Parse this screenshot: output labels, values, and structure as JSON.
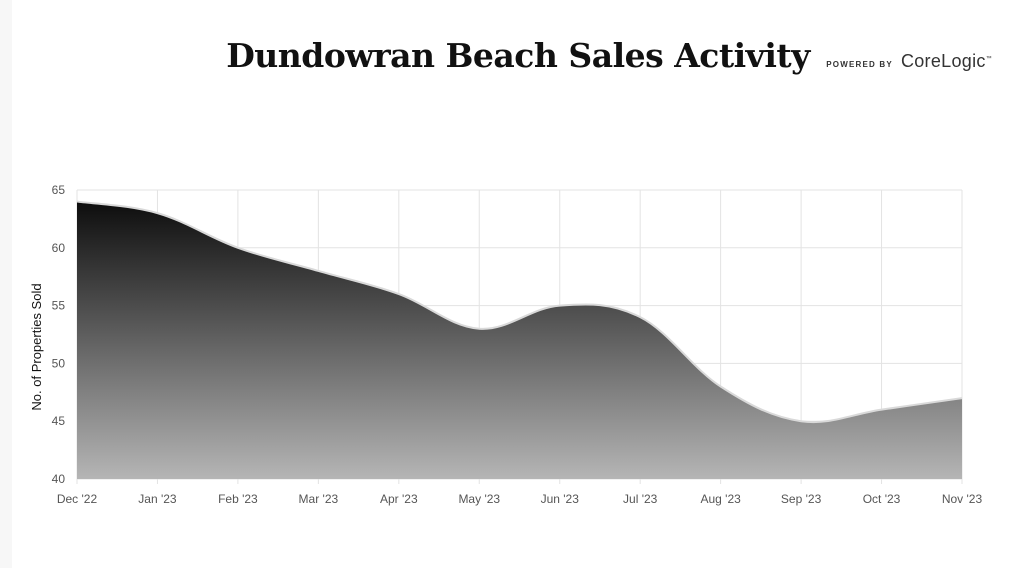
{
  "header": {
    "title": "Dundowran Beach Sales Activity",
    "brand_prefix": "POWERED BY",
    "brand_name": "CoreLogic",
    "brand_tm": "™"
  },
  "chart_data": {
    "type": "area",
    "title": "Dundowran Beach Sales Activity",
    "xlabel": "",
    "ylabel": "No. of Properties Sold",
    "categories": [
      "Dec '22",
      "Jan '23",
      "Feb '23",
      "Mar '23",
      "Apr '23",
      "May '23",
      "Jun '23",
      "Jul '23",
      "Aug '23",
      "Sep '23",
      "Oct '23",
      "Nov '23"
    ],
    "series": [
      {
        "values": [
          64,
          63,
          60,
          58,
          56,
          53,
          55,
          54,
          48,
          45,
          46,
          47
        ]
      }
    ],
    "ylim": [
      40,
      65
    ],
    "yticks": [
      40,
      45,
      50,
      55,
      60,
      65
    ],
    "grid": true,
    "legend": "none",
    "colors": {
      "fill_top": "#0d0d0d",
      "fill_bottom": "#b5b5b5",
      "line": "#d9d9d9",
      "grid": "#e3e3e3"
    }
  }
}
